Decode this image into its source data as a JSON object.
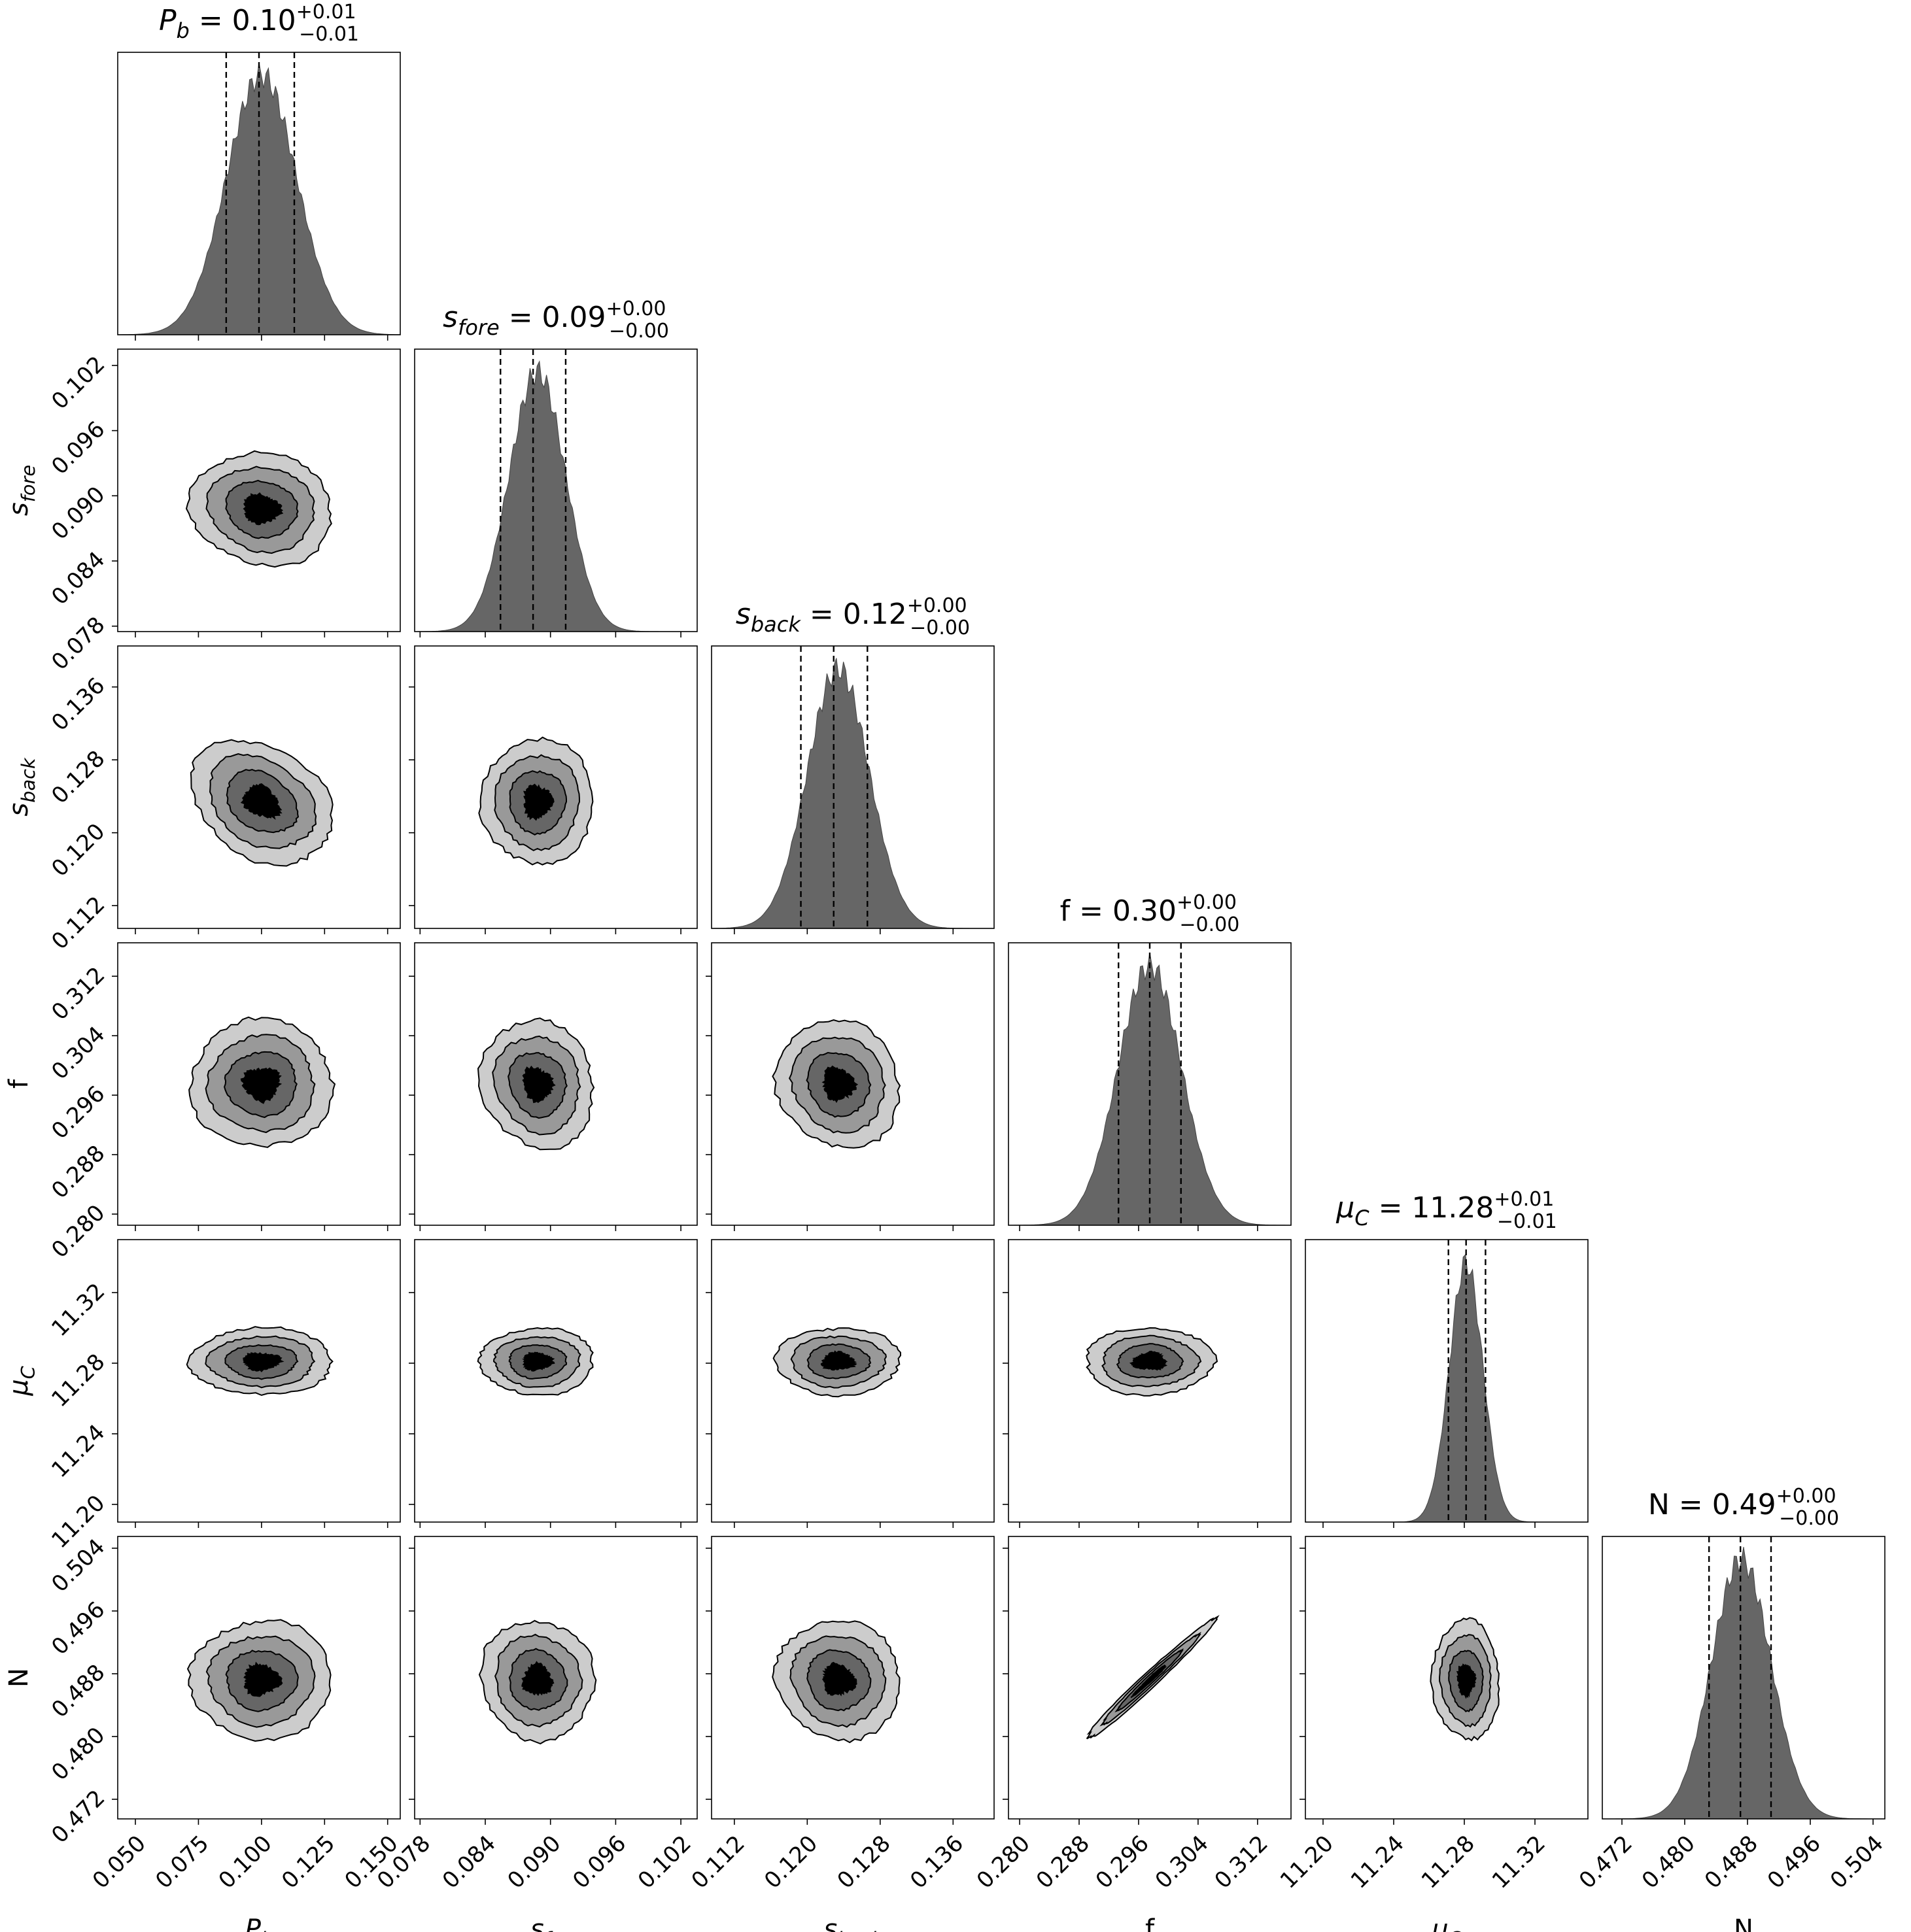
{
  "chart_data": {
    "type": "corner",
    "params": [
      {
        "key": "Pb",
        "label": "P",
        "sub": "b",
        "title_name": "P",
        "title_sub": "b",
        "median": "0.10",
        "plus": "+0.01",
        "minus": "−0.01",
        "range": [
          0.043,
          0.155
        ],
        "ticks": [
          "0.050",
          "0.075",
          "0.100",
          "0.125",
          "0.150"
        ],
        "tick_values": [
          0.05,
          0.075,
          0.1,
          0.125,
          0.15
        ],
        "mean": 0.1,
        "sd": 0.014,
        "q16": 0.086,
        "q50": 0.099,
        "q84": 0.113
      },
      {
        "key": "sfore",
        "label": "s",
        "sub": "fore",
        "title_name": "s",
        "title_sub": "fore",
        "median": "0.09",
        "plus": "+0.00",
        "minus": "−0.00",
        "range": [
          0.0775,
          0.1035
        ],
        "ticks": [
          "0.078",
          "0.084",
          "0.090",
          "0.096",
          "0.102"
        ],
        "tick_values": [
          0.078,
          0.084,
          0.09,
          0.096,
          0.102
        ],
        "mean": 0.0888,
        "sd": 0.0026,
        "q16": 0.0854,
        "q50": 0.0884,
        "q84": 0.0914
      },
      {
        "key": "sback",
        "label": "s",
        "sub": "back",
        "title_name": "s",
        "title_sub": "back",
        "median": "0.12",
        "plus": "+0.00",
        "minus": "−0.00",
        "range": [
          0.1095,
          0.1405
        ],
        "ticks": [
          "0.112",
          "0.120",
          "0.128",
          "0.136"
        ],
        "tick_values": [
          0.112,
          0.12,
          0.128,
          0.136
        ],
        "mean": 0.1234,
        "sd": 0.0034,
        "q16": 0.1193,
        "q50": 0.1229,
        "q84": 0.1266
      },
      {
        "key": "f",
        "label": "f",
        "sub": "",
        "title_name": "f",
        "title_sub": "",
        "median": "0.30",
        "plus": "+0.00",
        "minus": "−0.00",
        "range": [
          0.2785,
          0.3165
        ],
        "ticks": [
          "0.280",
          "0.288",
          "0.296",
          "0.304",
          "0.312"
        ],
        "tick_values": [
          0.28,
          0.288,
          0.296,
          0.304,
          0.312
        ],
        "mean": 0.2975,
        "sd": 0.0043,
        "q16": 0.2933,
        "q50": 0.2975,
        "q84": 0.3017
      },
      {
        "key": "muC",
        "label": "μ",
        "sub": "C",
        "title_name": "μ",
        "title_sub": "C",
        "median": "11.28",
        "plus": "+0.01",
        "minus": "−0.01",
        "range": [
          11.19,
          11.35
        ],
        "ticks": [
          "11.20",
          "11.24",
          "11.28",
          "11.32"
        ],
        "tick_values": [
          11.2,
          11.24,
          11.28,
          11.32
        ],
        "mean": 11.281,
        "sd": 0.0095,
        "q16": 11.271,
        "q50": 11.281,
        "q84": 11.292
      },
      {
        "key": "N",
        "label": "N",
        "sub": "",
        "title_name": "N",
        "title_sub": "",
        "median": "0.49",
        "plus": "+0.00",
        "minus": "−0.00",
        "range": [
          0.4695,
          0.5055
        ],
        "ticks": [
          "0.472",
          "0.480",
          "0.488",
          "0.496",
          "0.504"
        ],
        "tick_values": [
          0.472,
          0.48,
          0.488,
          0.496,
          0.504
        ],
        "mean": 0.4872,
        "sd": 0.0038,
        "q16": 0.4831,
        "q50": 0.4871,
        "q84": 0.491
      }
    ],
    "correlations": {
      "1,0": -0.1,
      "2,0": -0.3,
      "2,1": 0.0,
      "3,0": 0.0,
      "3,1": -0.1,
      "3,2": -0.1,
      "4,0": 0.0,
      "4,1": 0.0,
      "4,2": 0.0,
      "4,3": 0.0,
      "5,0": 0.0,
      "5,1": -0.05,
      "5,2": -0.05,
      "5,3": 0.985,
      "5,4": -0.05
    },
    "contour_levels": [
      "0.5 sigma",
      "1 sigma",
      "1.5 sigma",
      "2 sigma"
    ],
    "contour_fill": [
      "#000000",
      "#666666",
      "#999999",
      "#cccccc"
    ],
    "hist_fill": "#666666",
    "grid": false,
    "legend": "none"
  }
}
